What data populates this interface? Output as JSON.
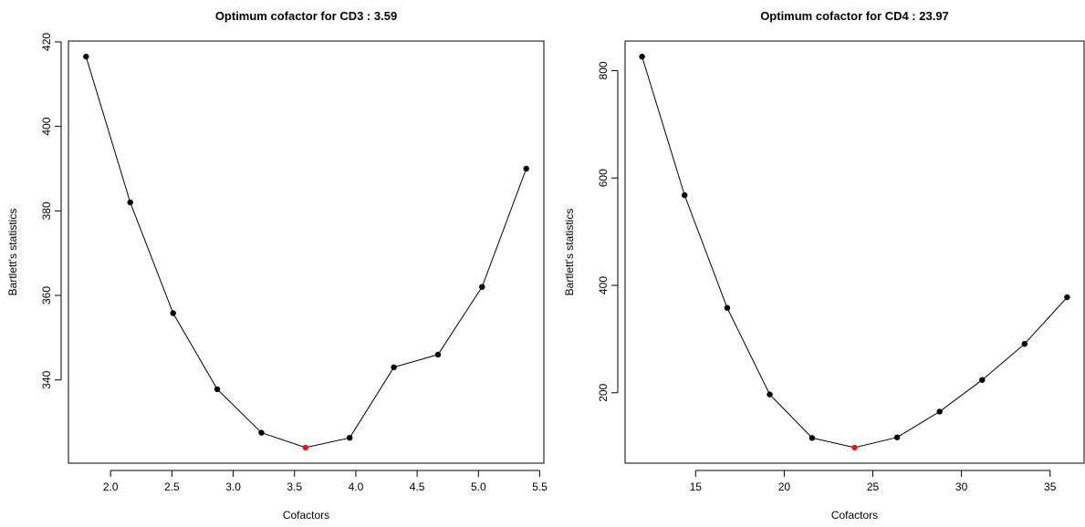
{
  "chart_data": [
    {
      "type": "line",
      "title": "Optimum cofactor for CD3 : 3.59",
      "xlabel": "Cofactors",
      "ylabel": "Bartlett's statistics",
      "xlim": [
        1.8,
        5.39
      ],
      "ylim": [
        324,
        416.5
      ],
      "xticks": [
        "2.0",
        "2.5",
        "3.0",
        "3.5",
        "4.0",
        "4.5",
        "5.0",
        "5.5"
      ],
      "yticks": [
        "340",
        "360",
        "380",
        "400",
        "420"
      ],
      "x": [
        1.8,
        2.16,
        2.51,
        2.87,
        3.23,
        3.59,
        3.95,
        4.31,
        4.67,
        5.03,
        5.39
      ],
      "y": [
        416.5,
        382,
        355.8,
        337.8,
        327.5,
        324,
        326.3,
        343,
        346,
        362,
        390
      ],
      "highlight_index": 5,
      "point_color": "#000000",
      "highlight_color": "#e41a1c",
      "grid": false
    },
    {
      "type": "line",
      "title": "Optimum cofactor for CD4 : 23.97",
      "xlabel": "Cofactors",
      "ylabel": "Bartlett's statistics",
      "xlim": [
        11.98,
        35.96
      ],
      "ylim": [
        98,
        826
      ],
      "xticks": [
        "15",
        "20",
        "25",
        "30",
        "35"
      ],
      "yticks": [
        "200",
        "400",
        "600",
        "800"
      ],
      "x": [
        11.98,
        14.38,
        16.78,
        19.18,
        21.57,
        23.97,
        26.37,
        28.77,
        31.17,
        33.56,
        35.96
      ],
      "y": [
        826,
        568,
        358,
        197,
        116,
        98,
        117,
        165,
        224,
        291,
        378
      ],
      "highlight_index": 5,
      "point_color": "#000000",
      "highlight_color": "#e41a1c",
      "grid": false
    }
  ]
}
